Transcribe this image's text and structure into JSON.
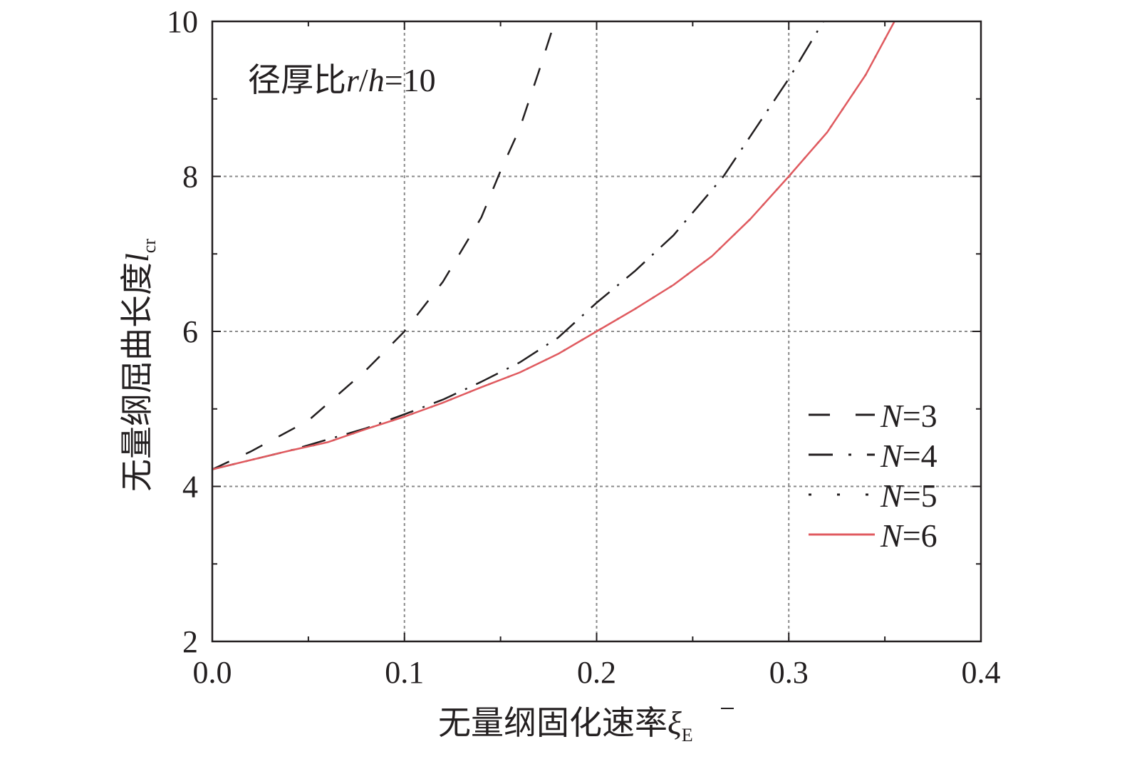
{
  "chart_data": {
    "type": "line",
    "annotation": {
      "prefix": "径厚比",
      "var1": "r",
      "slash": "/",
      "var2": "h",
      "suffix": "=10"
    },
    "xlabel": {
      "text": "无量纲固化速率",
      "symbol": "ξ",
      "subscript": "E"
    },
    "ylabel": {
      "text": "无量纲屈曲长度",
      "symbol": "l",
      "subscript": "cr"
    },
    "xlim": [
      0,
      0.4
    ],
    "ylim": [
      2,
      10
    ],
    "xticks": [
      "0.0",
      "0.1",
      "0.2",
      "0.3",
      "0.4"
    ],
    "yticks": [
      "2",
      "4",
      "6",
      "8",
      "10"
    ],
    "grid": true,
    "legend_position": "bottom-right",
    "series": [
      {
        "name": "N=3",
        "var": "N",
        "value": "=3",
        "style": "dashed",
        "color": "#231f20",
        "x": [
          0,
          0.02,
          0.05,
          0.08,
          0.1,
          0.12,
          0.14,
          0.15,
          0.16,
          0.17,
          0.177
        ],
        "y": [
          4.22,
          4.45,
          4.85,
          5.5,
          6.0,
          6.64,
          7.47,
          8.07,
          8.62,
          9.36,
          9.9
        ]
      },
      {
        "name": "N=4",
        "var": "N",
        "value": "=4",
        "style": "dashdot",
        "color": "#231f20",
        "x": [
          0,
          0.04,
          0.08,
          0.1,
          0.12,
          0.14,
          0.16,
          0.18,
          0.2,
          0.22,
          0.24,
          0.266,
          0.3,
          0.318
        ],
        "y": [
          4.22,
          4.46,
          4.75,
          4.93,
          5.12,
          5.35,
          5.6,
          5.92,
          6.37,
          6.78,
          7.24,
          8.0,
          9.26,
          10.0
        ]
      },
      {
        "name": "N=5",
        "var": "N",
        "value": "=5",
        "style": "dotted",
        "color": "#231f20",
        "x": [
          0,
          0.02,
          0.04,
          0.06,
          0.08,
          0.1,
          0.12,
          0.14,
          0.16,
          0.18,
          0.2,
          0.22,
          0.24,
          0.26,
          0.28,
          0.3,
          0.32,
          0.34,
          0.355
        ],
        "y": [
          4.22,
          4.34,
          4.46,
          4.57,
          4.74,
          4.9,
          5.08,
          5.28,
          5.47,
          5.71,
          6.0,
          6.29,
          6.6,
          6.97,
          7.45,
          8.0,
          8.57,
          9.31,
          10.0
        ]
      },
      {
        "name": "N=6",
        "var": "N",
        "value": "=6",
        "style": "solid",
        "color": "#e05a5f",
        "x": [
          0,
          0.02,
          0.04,
          0.06,
          0.08,
          0.1,
          0.12,
          0.14,
          0.16,
          0.18,
          0.2,
          0.22,
          0.24,
          0.26,
          0.28,
          0.3,
          0.32,
          0.34,
          0.355
        ],
        "y": [
          4.22,
          4.34,
          4.46,
          4.57,
          4.74,
          4.9,
          5.08,
          5.28,
          5.47,
          5.71,
          6.0,
          6.29,
          6.6,
          6.97,
          7.45,
          8.0,
          8.57,
          9.31,
          10.0
        ]
      }
    ]
  }
}
